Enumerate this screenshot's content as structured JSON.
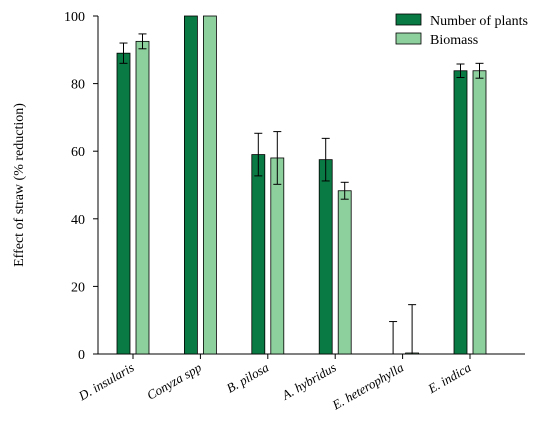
{
  "chart_data": {
    "type": "bar",
    "ylabel": "Effect of straw (% reduction)",
    "xlabel": "",
    "ylim": [
      0,
      100
    ],
    "yticks": [
      0,
      20,
      40,
      60,
      80,
      100
    ],
    "categories": [
      "D. insularis",
      "Conyza spp",
      "B. pilosa",
      "A. hybridus",
      "E. heterophylla",
      "E. indica"
    ],
    "series": [
      {
        "name": "Number of plants",
        "color": "#0a7a44",
        "values": [
          89,
          100,
          59,
          57.5,
          0,
          83.8
        ],
        "errors": [
          3,
          0,
          6.3,
          6.3,
          9.6,
          2
        ]
      },
      {
        "name": "Biomass",
        "color": "#8ecf9e",
        "values": [
          92.5,
          100,
          58,
          48.3,
          0.3,
          83.8
        ],
        "errors": [
          2.2,
          0,
          7.8,
          2.5,
          14.3,
          2.2
        ]
      }
    ],
    "legend_position": "top-right",
    "grid": false
  }
}
